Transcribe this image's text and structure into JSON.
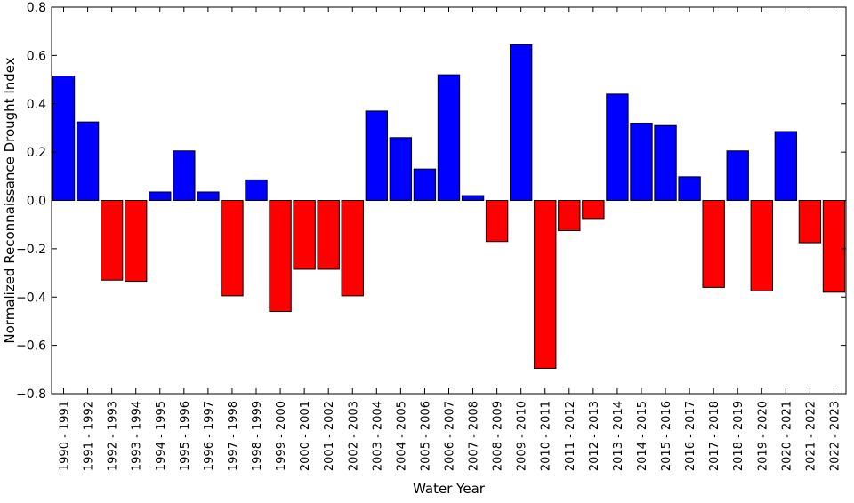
{
  "chart_data": {
    "type": "bar",
    "title": "",
    "xlabel": "Water Year",
    "ylabel": "Normalized Reconnaissance Drought Index",
    "ylim": [
      -0.8,
      0.8
    ],
    "yticks": [
      -0.8,
      -0.6,
      -0.4,
      -0.2,
      0.0,
      0.2,
      0.4,
      0.6,
      0.8
    ],
    "ytick_labels": [
      "−0.8",
      "−0.6",
      "−0.4",
      "−0.2",
      "0.0",
      "0.2",
      "0.4",
      "0.6",
      "0.8"
    ],
    "grid": false,
    "legend": "none",
    "colors": {
      "positive": "#0000ff",
      "negative": "#ff0000",
      "bar_edge": "#000000"
    },
    "categories": [
      "1990 - 1991",
      "1991 - 1992",
      "1992 - 1993",
      "1993 - 1994",
      "1994 - 1995",
      "1995 - 1996",
      "1996 - 1997",
      "1997 - 1998",
      "1998 - 1999",
      "1999 - 2000",
      "2000 - 2001",
      "2001 - 2002",
      "2002 - 2003",
      "2003 - 2004",
      "2004 - 2005",
      "2005 - 2006",
      "2006 - 2007",
      "2007 - 2008",
      "2008 - 2009",
      "2009 - 2010",
      "2010 - 2011",
      "2011 - 2012",
      "2012 - 2013",
      "2013 - 2014",
      "2014 - 2015",
      "2015 - 2016",
      "2016 - 2017",
      "2017 - 2018",
      "2018 - 2019",
      "2019 - 2020",
      "2020 - 2021",
      "2021 - 2022",
      "2022 - 2023"
    ],
    "values": [
      0.515,
      0.325,
      -0.33,
      -0.335,
      0.035,
      0.205,
      0.035,
      -0.395,
      0.085,
      -0.46,
      -0.285,
      -0.285,
      -0.395,
      0.37,
      0.26,
      0.13,
      0.52,
      0.02,
      -0.17,
      0.645,
      -0.695,
      -0.125,
      -0.075,
      0.44,
      0.32,
      0.31,
      0.098,
      -0.36,
      0.205,
      -0.375,
      0.285,
      -0.175,
      -0.38
    ]
  }
}
